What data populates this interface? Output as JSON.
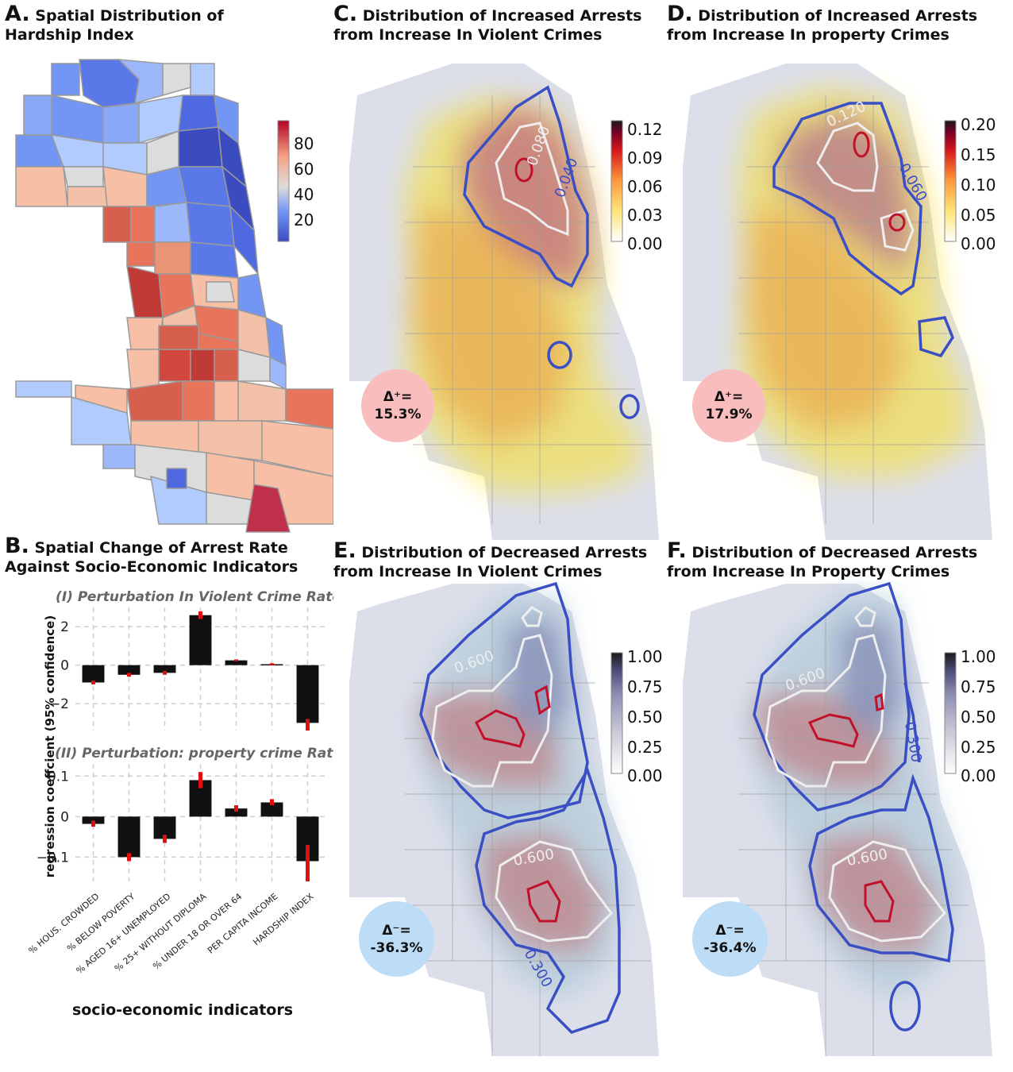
{
  "colors": {
    "coolwarm": [
      "#3b4cc0",
      "#7396f5",
      "#b0cbfc",
      "#dddcdc",
      "#f6bfa6",
      "#e7745b",
      "#b40426"
    ],
    "ylorrd": [
      "#ffffff",
      "#ffeda0",
      "#fed976",
      "#fd8d3c",
      "#e31a1c",
      "#800026",
      "#1a1a1a"
    ],
    "purples": [
      "#ffffff",
      "#c8c8d6",
      "#8f8fb4",
      "#4d4d7a",
      "#1a1a1a"
    ],
    "contour_blue": "#3a4fc4",
    "contour_white": "#eeeeee",
    "contour_red": "#c0102a",
    "badge_pos": "#f9bdbd",
    "badge_neg": "#bddcf5",
    "bar": "#111111",
    "err": "#e01010"
  },
  "panels": {
    "A": {
      "letter": "A.",
      "title1": "Spatial Distribution of",
      "title2": "Hardship Index"
    },
    "B": {
      "letter": "B.",
      "title1": "Spatial Change of Arrest Rate",
      "title2": "Against Socio-Economic Indicators"
    },
    "C": {
      "letter": "C.",
      "title1": "Distribution of Increased Arrests",
      "title2": "from Increase In Violent Crimes",
      "badge_label": "Δ⁺=",
      "badge_value": "15.3%",
      "contour_labels": [
        "0.080",
        "0.040"
      ]
    },
    "D": {
      "letter": "D.",
      "title1": "Distribution of Increased Arrests",
      "title2": "from Increase In property Crimes",
      "badge_label": "Δ⁺=",
      "badge_value": "17.9%",
      "contour_labels": [
        "0.120",
        "0.060"
      ]
    },
    "E": {
      "letter": "E.",
      "title1": "Distribution of Decreased Arrests",
      "title2": "from Increase In Violent Crimes",
      "badge_label": "Δ⁻=",
      "badge_value": "-36.3%",
      "contour_labels": [
        "0.600",
        "0.600",
        "0.300"
      ]
    },
    "F": {
      "letter": "F.",
      "title1": "Distribution of Decreased Arrests",
      "title2": "from Increase In Property Crimes",
      "badge_label": "Δ⁻=",
      "badge_value": "-36.4%",
      "contour_labels": [
        "0.600",
        "0.600",
        "0.300"
      ]
    }
  },
  "colorbars": {
    "A": {
      "ticks": [
        "80",
        "60",
        "40",
        "20"
      ]
    },
    "C": {
      "ticks": [
        "0.12",
        "0.09",
        "0.06",
        "0.03",
        "0.00"
      ]
    },
    "D": {
      "ticks": [
        "0.20",
        "0.15",
        "0.10",
        "0.05",
        "0.00"
      ]
    },
    "E": {
      "ticks": [
        "1.00",
        "0.75",
        "0.50",
        "0.25",
        "0.00"
      ]
    },
    "F": {
      "ticks": [
        "1.00",
        "0.75",
        "0.50",
        "0.25",
        "0.00"
      ]
    }
  },
  "chart_data": [
    {
      "type": "bar",
      "title": "(I) Perturbation In Violent Crime Rate",
      "categories": [
        "% HOUS. CROWDED",
        "% BELOW POVERTY",
        "% AGED 16+ UNEMPLOYED",
        "% 25+ WITHOUT DIPLOMA",
        "% UNDER 18 OR OVER 64",
        "PER CAPITA INCOME",
        "HARDSHIP INDEX"
      ],
      "values": [
        -0.9,
        -0.5,
        -0.4,
        2.6,
        0.25,
        0.05,
        -3.0
      ],
      "error_low": [
        -1.0,
        -0.6,
        -0.5,
        2.4,
        0.2,
        0.0,
        -3.4
      ],
      "error_high": [
        -0.8,
        -0.4,
        -0.3,
        2.8,
        0.3,
        0.1,
        -2.8
      ],
      "yticks": [
        "2",
        "0",
        "−2"
      ],
      "ylim": [
        -3.4,
        3.0
      ],
      "grid": true
    },
    {
      "type": "bar",
      "title": "(II) Perturbation: property crime Rate",
      "categories": [
        "% HOUS. CROWDED",
        "% BELOW POVERTY",
        "% AGED 16+ UNEMPLOYED",
        "% 25+ WITHOUT DIPLOMA",
        "% UNDER 18 OR OVER 64",
        "PER CAPITA INCOME",
        "HARDSHIP INDEX"
      ],
      "values": [
        -0.018,
        -0.1,
        -0.055,
        0.09,
        0.02,
        0.035,
        -0.11
      ],
      "error_low": [
        -0.025,
        -0.11,
        -0.065,
        0.07,
        0.012,
        0.028,
        -0.16
      ],
      "error_high": [
        -0.01,
        -0.09,
        -0.045,
        0.11,
        0.028,
        0.043,
        -0.07
      ],
      "yticks": [
        "0.1",
        "0",
        "−0.1"
      ],
      "ylim": [
        -0.16,
        0.13
      ],
      "grid": true
    }
  ],
  "axes": {
    "ylabel": "regression coeffcient (95% confidence)",
    "xlabel": "socio-economic indicators"
  }
}
